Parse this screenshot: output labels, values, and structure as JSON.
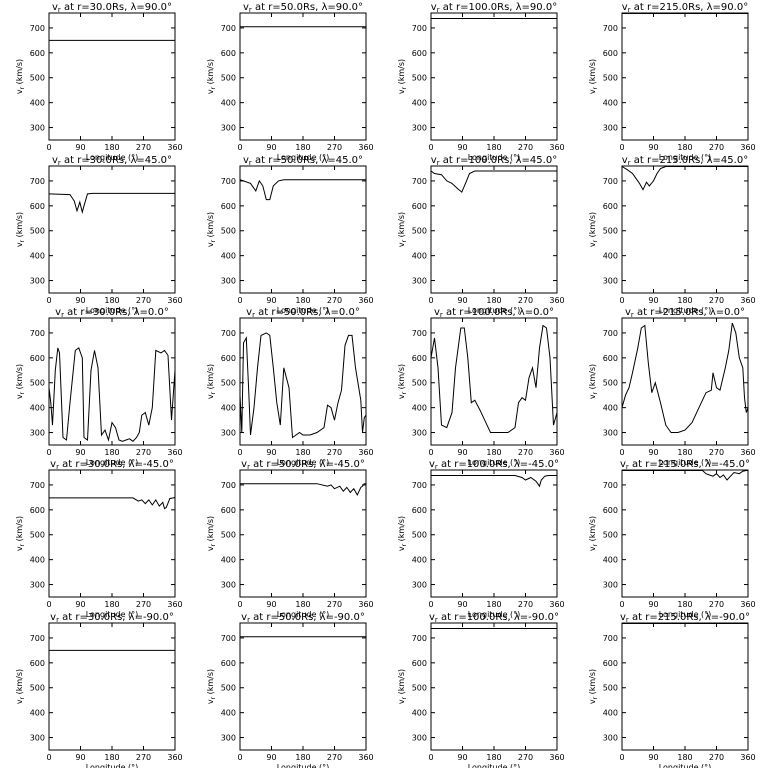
{
  "chart_data": {
    "type": "line",
    "layout": "5x4 grid",
    "radii": [
      "30.0",
      "50.0",
      "100.0",
      "215.0"
    ],
    "latitudes": [
      "90.0",
      "45.0",
      "0.0",
      "-45.0",
      "-90.0"
    ],
    "title_prefix": "v",
    "title_subscript": "r",
    "title_mid": " at r=",
    "title_unit": "Rs",
    "title_lambda": "λ=",
    "degree": "°",
    "xlabel": "Longitude (°)",
    "ylabel": "v (km/s)",
    "ylabel_sub": "r",
    "x_ticks": [
      0,
      90,
      180,
      270,
      360
    ],
    "y_ticks": [
      300,
      400,
      500,
      600,
      700
    ],
    "xlim": [
      0,
      360
    ],
    "ylim": [
      250,
      760
    ],
    "panels": [
      {
        "r": "30.0",
        "lat": "90.0",
        "x": [
          0,
          360
        ],
        "y": [
          650,
          650
        ]
      },
      {
        "r": "50.0",
        "lat": "90.0",
        "x": [
          0,
          360
        ],
        "y": [
          705,
          705
        ]
      },
      {
        "r": "100.0",
        "lat": "90.0",
        "x": [
          0,
          360
        ],
        "y": [
          738,
          738
        ]
      },
      {
        "r": "215.0",
        "lat": "90.0",
        "x": [
          0,
          360
        ],
        "y": [
          758,
          758
        ]
      },
      {
        "r": "30.0",
        "lat": "45.0",
        "x": [
          0,
          60,
          72,
          80,
          88,
          95,
          100,
          110,
          125,
          360
        ],
        "y": [
          648,
          645,
          620,
          580,
          615,
          575,
          600,
          648,
          650,
          650
        ]
      },
      {
        "r": "50.0",
        "lat": "45.0",
        "x": [
          0,
          10,
          30,
          45,
          55,
          65,
          75,
          85,
          95,
          110,
          125,
          360
        ],
        "y": [
          705,
          700,
          690,
          660,
          700,
          680,
          625,
          625,
          680,
          700,
          705,
          705
        ]
      },
      {
        "r": "100.0",
        "lat": "45.0",
        "x": [
          0,
          10,
          30,
          45,
          60,
          75,
          88,
          100,
          110,
          125,
          360
        ],
        "y": [
          740,
          730,
          725,
          700,
          690,
          670,
          655,
          695,
          730,
          740,
          740
        ]
      },
      {
        "r": "215.0",
        "lat": "45.0",
        "x": [
          0,
          15,
          30,
          50,
          60,
          70,
          78,
          90,
          100,
          110,
          125,
          360
        ],
        "y": [
          758,
          745,
          730,
          690,
          665,
          695,
          680,
          700,
          730,
          750,
          758,
          758
        ]
      },
      {
        "r": "30.0",
        "lat": "0.0",
        "x": [
          0,
          5,
          10,
          18,
          25,
          30,
          40,
          50,
          60,
          75,
          85,
          95,
          100,
          110,
          120,
          130,
          140,
          150,
          160,
          170,
          180,
          190,
          200,
          210,
          220,
          230,
          240,
          250,
          258,
          265,
          275,
          285,
          295,
          305,
          320,
          330,
          340,
          350,
          360
        ],
        "y": [
          480,
          420,
          330,
          550,
          640,
          620,
          280,
          270,
          420,
          630,
          640,
          600,
          280,
          270,
          550,
          630,
          560,
          290,
          310,
          270,
          340,
          320,
          270,
          265,
          270,
          275,
          265,
          280,
          300,
          370,
          380,
          330,
          400,
          630,
          620,
          630,
          610,
          350,
          550
        ]
      },
      {
        "r": "50.0",
        "lat": "0.0",
        "x": [
          0,
          5,
          10,
          18,
          25,
          30,
          40,
          50,
          60,
          75,
          85,
          95,
          105,
          115,
          125,
          140,
          150,
          160,
          170,
          180,
          200,
          220,
          240,
          250,
          260,
          270,
          280,
          290,
          300,
          310,
          320,
          330,
          345,
          350,
          355,
          360
        ],
        "y": [
          450,
          300,
          660,
          680,
          460,
          290,
          400,
          560,
          690,
          700,
          690,
          560,
          420,
          330,
          560,
          480,
          280,
          290,
          300,
          290,
          290,
          300,
          320,
          410,
          400,
          350,
          420,
          470,
          650,
          690,
          690,
          560,
          430,
          300,
          360,
          370
        ]
      },
      {
        "r": "100.0",
        "lat": "0.0",
        "x": [
          0,
          10,
          20,
          30,
          45,
          60,
          70,
          85,
          95,
          105,
          115,
          125,
          140,
          160,
          170,
          180,
          200,
          220,
          240,
          250,
          260,
          270,
          280,
          290,
          300,
          310,
          320,
          330,
          340,
          350,
          360
        ],
        "y": [
          600,
          680,
          560,
          330,
          320,
          380,
          560,
          720,
          720,
          600,
          420,
          430,
          390,
          330,
          300,
          300,
          300,
          300,
          320,
          420,
          440,
          430,
          520,
          560,
          480,
          640,
          730,
          720,
          600,
          330,
          380
        ]
      },
      {
        "r": "215.0",
        "lat": "0.0",
        "x": [
          0,
          10,
          20,
          30,
          45,
          55,
          65,
          75,
          85,
          95,
          110,
          125,
          140,
          160,
          180,
          200,
          220,
          240,
          255,
          260,
          270,
          280,
          295,
          305,
          315,
          325,
          335,
          345,
          350,
          355,
          360
        ],
        "y": [
          400,
          450,
          480,
          540,
          640,
          720,
          730,
          580,
          460,
          500,
          420,
          330,
          300,
          300,
          310,
          340,
          400,
          460,
          470,
          540,
          480,
          470,
          560,
          630,
          740,
          700,
          600,
          560,
          440,
          380,
          400
        ]
      },
      {
        "r": "30.0",
        "lat": "-45.0",
        "x": [
          0,
          240,
          255,
          265,
          275,
          285,
          295,
          305,
          315,
          325,
          330,
          335,
          345,
          355,
          360
        ],
        "y": [
          648,
          648,
          635,
          640,
          625,
          640,
          620,
          640,
          615,
          630,
          605,
          610,
          645,
          648,
          650
        ]
      },
      {
        "r": "50.0",
        "lat": "-45.0",
        "x": [
          0,
          220,
          250,
          260,
          270,
          285,
          295,
          305,
          315,
          325,
          335,
          345,
          350,
          355,
          360
        ],
        "y": [
          705,
          705,
          695,
          700,
          685,
          695,
          675,
          690,
          670,
          685,
          660,
          690,
          695,
          705,
          705
        ]
      },
      {
        "r": "100.0",
        "lat": "-45.0",
        "x": [
          0,
          240,
          260,
          270,
          285,
          300,
          310,
          315,
          325,
          335,
          345,
          360
        ],
        "y": [
          738,
          738,
          730,
          720,
          730,
          715,
          695,
          720,
          735,
          738,
          738,
          738
        ]
      },
      {
        "r": "215.0",
        "lat": "-45.0",
        "x": [
          0,
          230,
          240,
          250,
          260,
          270,
          280,
          290,
          300,
          310,
          320,
          335,
          345,
          355,
          360
        ],
        "y": [
          758,
          758,
          745,
          740,
          735,
          745,
          730,
          740,
          720,
          735,
          750,
          745,
          755,
          758,
          758
        ]
      },
      {
        "r": "30.0",
        "lat": "-90.0",
        "x": [
          0,
          360
        ],
        "y": [
          650,
          650
        ]
      },
      {
        "r": "50.0",
        "lat": "-90.0",
        "x": [
          0,
          360
        ],
        "y": [
          705,
          705
        ]
      },
      {
        "r": "100.0",
        "lat": "-90.0",
        "x": [
          0,
          360
        ],
        "y": [
          738,
          738
        ]
      },
      {
        "r": "215.0",
        "lat": "-90.0",
        "x": [
          0,
          360
        ],
        "y": [
          758,
          758
        ]
      }
    ]
  }
}
